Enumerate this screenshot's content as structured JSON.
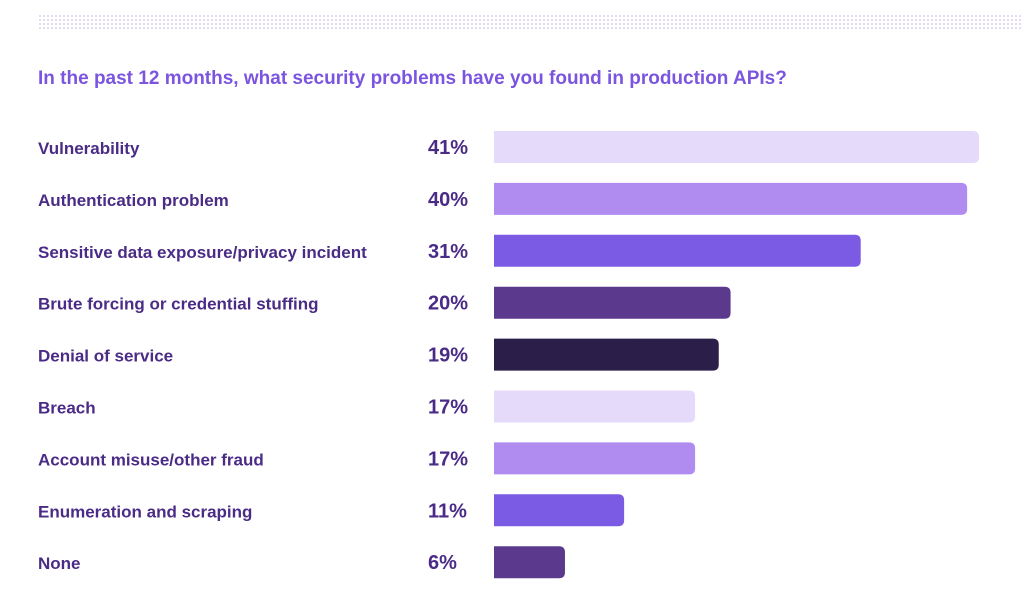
{
  "title": "In the past 12 months, what security problems have you found in production APIs?",
  "chart_data": {
    "type": "bar",
    "orientation": "horizontal",
    "categories": [
      "Vulnerability",
      "Authentication problem",
      "Sensitive data exposure/privacy incident",
      "Brute forcing or credential stuffing",
      "Denial of service",
      "Breach",
      "Account misuse/other fraud",
      "Enumeration and scraping",
      "None"
    ],
    "values": [
      41,
      40,
      31,
      20,
      19,
      17,
      17,
      11,
      6
    ],
    "value_labels": [
      "41%",
      "40%",
      "31%",
      "20%",
      "19%",
      "17%",
      "17%",
      "11%",
      "6%"
    ],
    "unit": "%",
    "grid": false,
    "legend": "none",
    "bar_colors": [
      "#e6dafa",
      "#b08cf0",
      "#7b5be3",
      "#5b3a8e",
      "#2b1f4a",
      "#e6dafa",
      "#b08cf0",
      "#7b5be3",
      "#5b3a8e"
    ]
  },
  "colors": {
    "title": "#7b55e0",
    "category_label": "#4a2b86",
    "value_label": "#4a2b86"
  }
}
